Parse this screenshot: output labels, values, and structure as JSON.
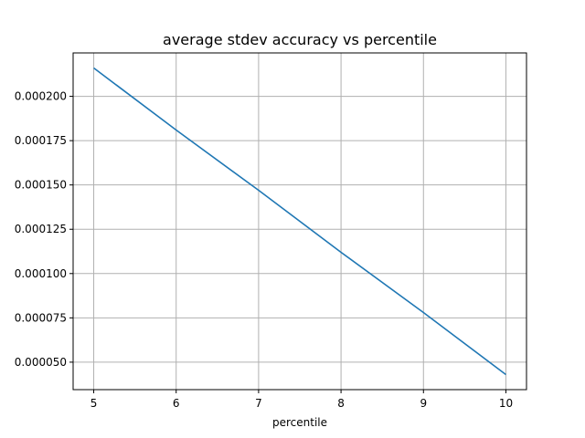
{
  "chart_data": {
    "type": "line",
    "title": "average stdev accuracy vs percentile",
    "xlabel": "percentile",
    "ylabel": "",
    "xlim": [
      4.75,
      10.25
    ],
    "ylim": [
      3.45e-05,
      0.0002245
    ],
    "grid": true,
    "x_ticks": [
      5,
      6,
      7,
      8,
      9,
      10
    ],
    "x_tick_labels": [
      "5",
      "6",
      "7",
      "8",
      "9",
      "10"
    ],
    "y_ticks": [
      5e-05,
      7.5e-05,
      0.0001,
      0.000125,
      0.00015,
      0.000175,
      0.0002
    ],
    "y_tick_labels": [
      "0.000050",
      "0.000075",
      "0.000100",
      "0.000125",
      "0.000150",
      "0.000175",
      "0.000200"
    ],
    "series": [
      {
        "color": "#1f77b4",
        "x": [
          5,
          6,
          7,
          8,
          9,
          10
        ],
        "values": [
          0.000216,
          0.000181,
          0.000147,
          0.000112,
          7.8e-05,
          4.3e-05
        ]
      }
    ]
  }
}
